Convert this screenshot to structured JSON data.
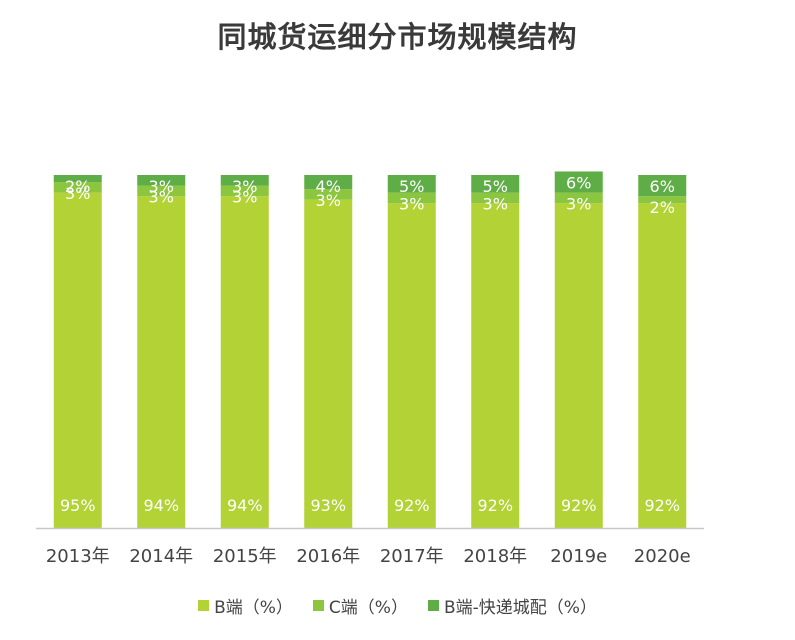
{
  "chart_data": {
    "type": "bar",
    "stacked": true,
    "title": "同城货运细分市场规模结构",
    "categories": [
      "2013年",
      "2014年",
      "2015年",
      "2016年",
      "2017年",
      "2018年",
      "2019e",
      "2020e"
    ],
    "series": [
      {
        "name": "B端（%）",
        "color": "#b2d235",
        "values": [
          95,
          94,
          94,
          93,
          92,
          92,
          92,
          92
        ],
        "labels": [
          "95%",
          "94%",
          "94%",
          "93%",
          "92%",
          "92%",
          "92%",
          "92%"
        ]
      },
      {
        "name": "C端（%）",
        "color": "#8cc63f",
        "values": [
          3,
          3,
          3,
          3,
          3,
          3,
          3,
          2
        ],
        "labels": [
          "3%",
          "3%",
          "3%",
          "3%",
          "3%",
          "3%",
          "3%",
          "2%"
        ]
      },
      {
        "name": "B端-快递城配（%）",
        "color": "#5fad46",
        "values": [
          2,
          3,
          3,
          4,
          5,
          5,
          6,
          6
        ],
        "labels": [
          "2%",
          "3%",
          "3%",
          "4%",
          "5%",
          "5%",
          "6%",
          "6%"
        ]
      }
    ],
    "ylim": [
      0,
      100
    ],
    "legend_position": "bottom",
    "grid": false
  }
}
